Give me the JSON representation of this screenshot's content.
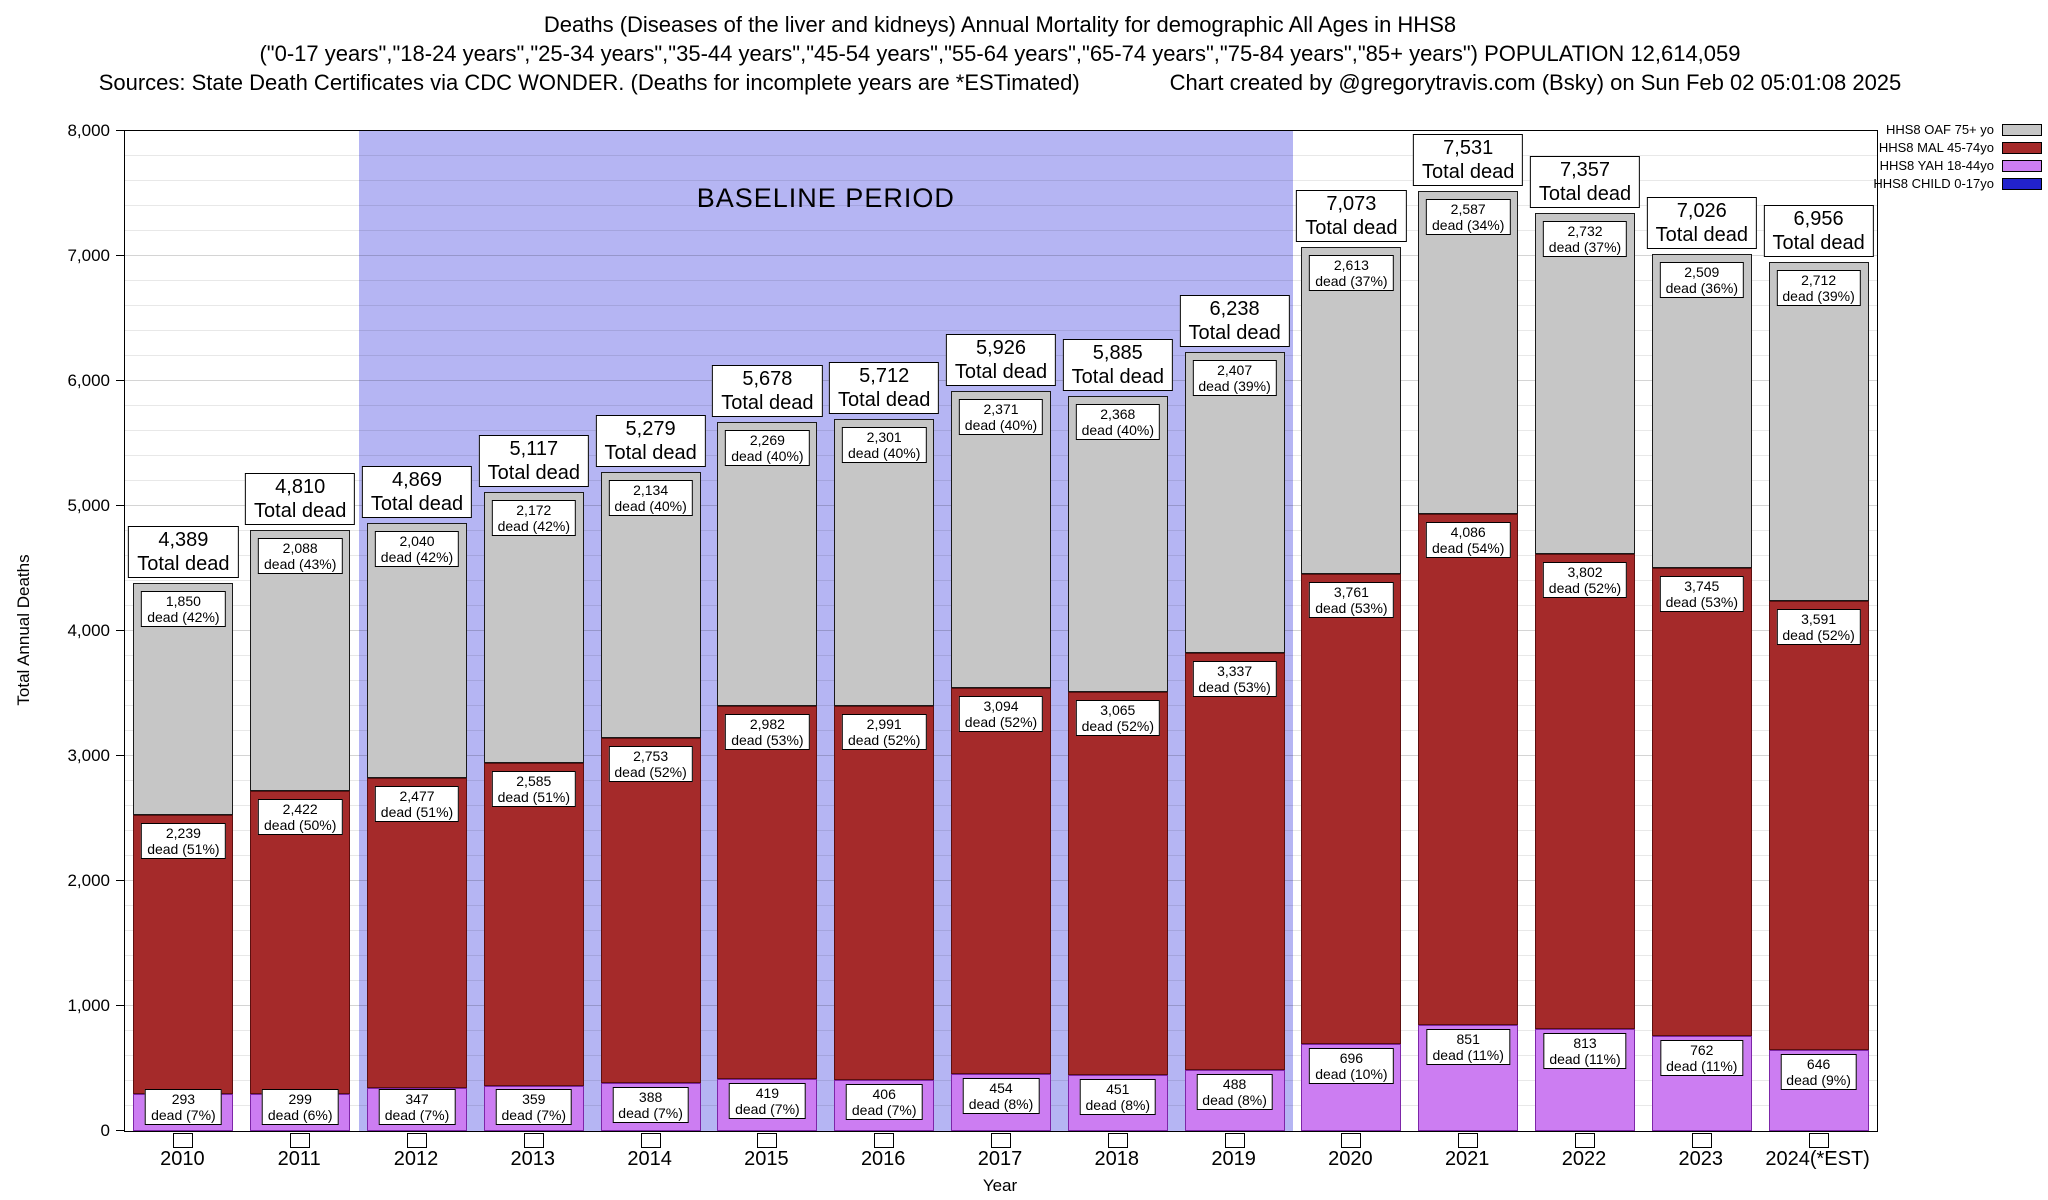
{
  "title": {
    "line1": "Deaths (Diseases of the liver and kidneys) Annual Mortality for demographic All Ages in HHS8",
    "line2": "(\"0-17 years\",\"18-24 years\",\"25-34 years\",\"35-44 years\",\"45-54 years\",\"55-64 years\",\"65-74 years\",\"75-84 years\",\"85+ years\") POPULATION 12,614,059",
    "line3_sources": "Sources: State Death Certificates via CDC WONDER. (Deaths for incomplete years are *ESTimated)",
    "line3_credit": "Chart created by @gregorytravis.com (Bsky) on Sun Feb 02 05:01:08 2025"
  },
  "axes": {
    "ylabel": "Total Annual Deaths",
    "xlabel": "Year",
    "yticks": [
      "0",
      "1,000",
      "2,000",
      "3,000",
      "4,000",
      "5,000",
      "6,000",
      "7,000",
      "8,000"
    ]
  },
  "labels": {
    "total_dead": "Total dead"
  },
  "chart_data": {
    "type": "bar",
    "subtype": "stacked",
    "title": "Deaths (Diseases of the liver and kidneys) Annual Mortality for demographic All Ages in HHS8",
    "xlabel": "Year",
    "ylabel": "Total Annual Deaths",
    "ylim": [
      0,
      8000
    ],
    "ytick_step": 1000,
    "grid_step": 200,
    "legend_position": "top-right",
    "categories": [
      "2010",
      "2011",
      "2012",
      "2013",
      "2014",
      "2015",
      "2016",
      "2017",
      "2018",
      "2019",
      "2020",
      "2021",
      "2022",
      "2023",
      "2024(*EST)"
    ],
    "totals": [
      4389,
      4810,
      4869,
      5117,
      5279,
      5678,
      5712,
      5926,
      5885,
      6238,
      7073,
      7531,
      7357,
      7026,
      6956
    ],
    "series": [
      {
        "key": "yah",
        "name": "HHS8 YAH 18-44yo",
        "color": "#cc7df2",
        "border": "#7d26a8",
        "values": [
          293,
          299,
          347,
          359,
          388,
          419,
          406,
          454,
          451,
          488,
          696,
          851,
          813,
          762,
          646
        ],
        "labels": [
          "dead (7%)",
          "dead (6%)",
          "dead (7%)",
          "dead (7%)",
          "dead (7%)",
          "dead (7%)",
          "dead (7%)",
          "dead (8%)",
          "dead (8%)",
          "dead (8%)",
          "dead (10%)",
          "dead (11%)",
          "dead (11%)",
          "dead (11%)",
          "dead (9%)"
        ]
      },
      {
        "key": "mal",
        "name": "HHS8 MAL 45-74yo",
        "color": "#a52a2a",
        "border": "#5c0f0f",
        "values": [
          2239,
          2422,
          2477,
          2585,
          2753,
          2982,
          2991,
          3094,
          3065,
          3337,
          3761,
          4086,
          3802,
          3745,
          3591
        ],
        "labels": [
          "dead (51%)",
          "dead (50%)",
          "dead (51%)",
          "dead (51%)",
          "dead (52%)",
          "dead (53%)",
          "dead (52%)",
          "dead (52%)",
          "dead (52%)",
          "dead (53%)",
          "dead (53%)",
          "dead (54%)",
          "dead (52%)",
          "dead (53%)",
          "dead (52%)"
        ]
      },
      {
        "key": "oaf",
        "name": "HHS8 OAF 75+ yo",
        "color": "#c6c6c6",
        "border": "#1a1a1a",
        "values": [
          1850,
          2088,
          2040,
          2172,
          2134,
          2269,
          2301,
          2371,
          2368,
          2407,
          2613,
          2587,
          2732,
          2509,
          2712
        ],
        "labels": [
          "dead (42%)",
          "dead (43%)",
          "dead (42%)",
          "dead (42%)",
          "dead (40%)",
          "dead (40%)",
          "dead (40%)",
          "dead (40%)",
          "dead (40%)",
          "dead (39%)",
          "dead (37%)",
          "dead (34%)",
          "dead (37%)",
          "dead (36%)",
          "dead (39%)"
        ]
      }
    ],
    "legend": [
      {
        "label": "HHS8 OAF 75+ yo",
        "color": "#c6c6c6"
      },
      {
        "label": "HHS8 MAL 45-74yo",
        "color": "#a52a2a"
      },
      {
        "label": "HHS8 YAH 18-44yo",
        "color": "#cc7df2"
      },
      {
        "label": "HHS8 CHILD 0-17yo",
        "color": "#2222cc"
      }
    ],
    "baseline": {
      "label": "BASELINE PERIOD",
      "start_index": 2,
      "end_index": 9,
      "color": "#b5b5f3"
    }
  }
}
